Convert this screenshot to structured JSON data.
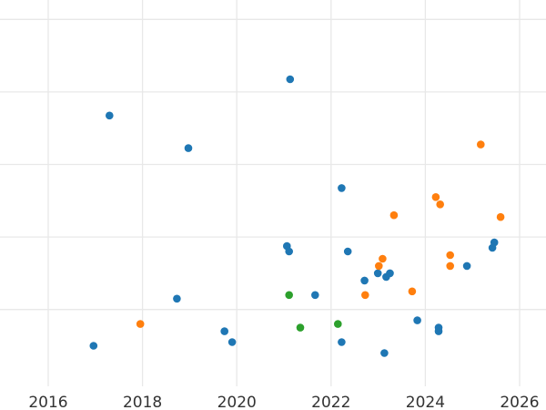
{
  "chart_data": {
    "type": "scatter",
    "title": "",
    "xlabel": "",
    "ylabel": "",
    "x_axis": {
      "type": "time",
      "range": [
        "2015-03-01",
        "2026-07-01"
      ],
      "ticks": [
        "2016",
        "2018",
        "2020",
        "2022",
        "2024",
        "2026"
      ]
    },
    "y_axis": {
      "range": [
        -1.0,
        9.6
      ],
      "tick_labels_visible": false,
      "gridlines": [
        9,
        7,
        5,
        3,
        1
      ]
    },
    "grid": true,
    "series": [
      {
        "color": "#1f77b4",
        "points": [
          {
            "x": "2016-12-18",
            "y": 0.0
          },
          {
            "x": "2017-04-20",
            "y": 6.35
          },
          {
            "x": "2018-09-24",
            "y": 1.3
          },
          {
            "x": "2018-12-22",
            "y": 5.45
          },
          {
            "x": "2019-09-28",
            "y": 0.4
          },
          {
            "x": "2019-11-26",
            "y": 0.1
          },
          {
            "x": "2021-01-24",
            "y": 2.75
          },
          {
            "x": "2021-02-10",
            "y": 2.6
          },
          {
            "x": "2021-02-18",
            "y": 7.35
          },
          {
            "x": "2021-08-31",
            "y": 1.4
          },
          {
            "x": "2022-03-24",
            "y": 4.35
          },
          {
            "x": "2022-03-24",
            "y": 0.1
          },
          {
            "x": "2022-05-11",
            "y": 2.6
          },
          {
            "x": "2022-09-17",
            "y": 1.8
          },
          {
            "x": "2022-12-29",
            "y": 2.0
          },
          {
            "x": "2023-02-18",
            "y": -0.2
          },
          {
            "x": "2023-03-04",
            "y": 1.9
          },
          {
            "x": "2023-04-02",
            "y": 2.0
          },
          {
            "x": "2023-10-31",
            "y": 0.7
          },
          {
            "x": "2024-04-13",
            "y": 0.4
          },
          {
            "x": "2024-04-13",
            "y": 0.5
          },
          {
            "x": "2024-11-19",
            "y": 2.2
          },
          {
            "x": "2025-06-04",
            "y": 2.7
          },
          {
            "x": "2025-06-19",
            "y": 2.85
          }
        ]
      },
      {
        "color": "#ff7f0e",
        "points": [
          {
            "x": "2017-12-15",
            "y": 0.6
          },
          {
            "x": "2022-09-22",
            "y": 1.4
          },
          {
            "x": "2023-01-06",
            "y": 2.2
          },
          {
            "x": "2023-02-04",
            "y": 2.4
          },
          {
            "x": "2023-05-03",
            "y": 3.6
          },
          {
            "x": "2023-09-21",
            "y": 1.5
          },
          {
            "x": "2024-03-22",
            "y": 4.1
          },
          {
            "x": "2024-04-25",
            "y": 3.9
          },
          {
            "x": "2024-07-12",
            "y": 2.5
          },
          {
            "x": "2024-07-12",
            "y": 2.2
          },
          {
            "x": "2025-03-06",
            "y": 5.55
          },
          {
            "x": "2025-08-07",
            "y": 3.55
          }
        ]
      },
      {
        "color": "#2ca02c",
        "points": [
          {
            "x": "2021-02-10",
            "y": 1.4
          },
          {
            "x": "2021-05-08",
            "y": 0.5
          },
          {
            "x": "2022-02-23",
            "y": 0.6
          }
        ]
      }
    ]
  }
}
